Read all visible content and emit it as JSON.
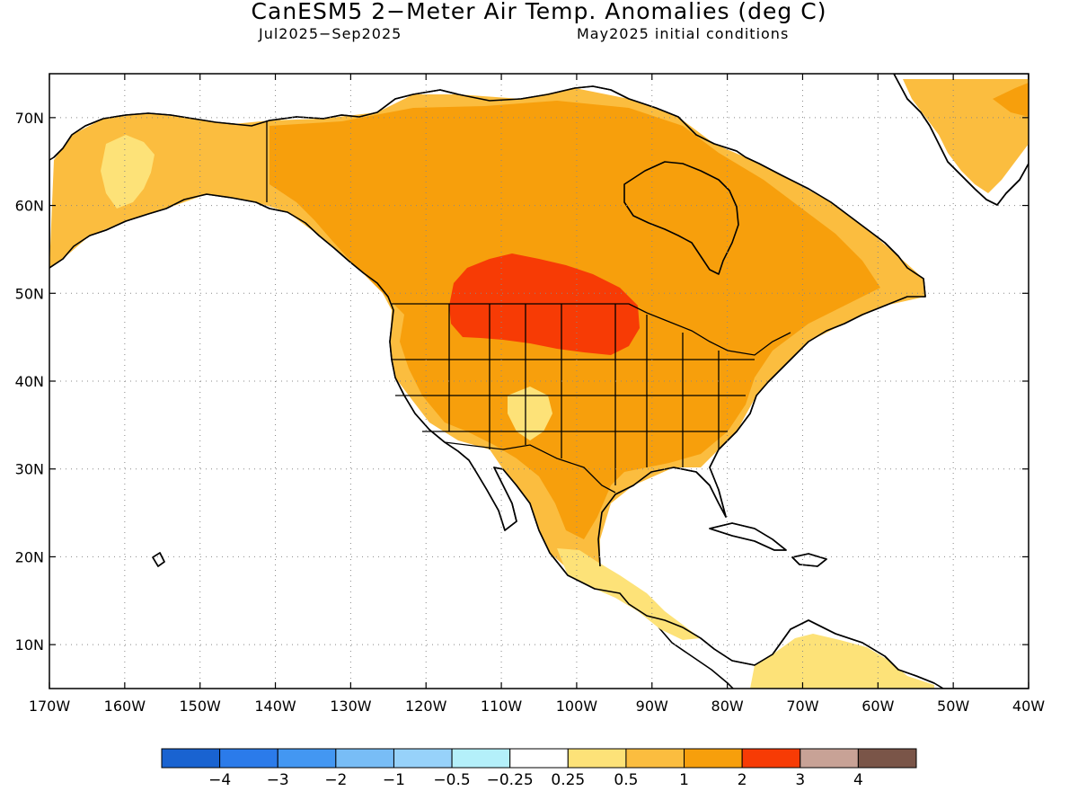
{
  "title": "CanESM5 2−Meter Air Temp. Anomalies (deg C)",
  "subtitle_period": "Jul2025−Sep2025",
  "subtitle_init": "May2025 initial conditions",
  "map": {
    "lon_range": [
      -170,
      -40
    ],
    "lat_range": [
      5,
      75
    ],
    "grid": "dotted",
    "lon_ticks": [
      "170W",
      "160W",
      "150W",
      "140W",
      "130W",
      "120W",
      "110W",
      "100W",
      "90W",
      "80W",
      "70W",
      "60W",
      "50W",
      "40W"
    ],
    "lat_ticks": [
      "10N",
      "20N",
      "30N",
      "40N",
      "50N",
      "60N",
      "70N"
    ],
    "colors": {
      "land_outline": "#000000",
      "anom_0_25_0_5": "#fde278",
      "anom_0_5_1": "#fbbd3f",
      "anom_1_2": "#f79f0c",
      "anom_2_3": "#f73b05",
      "no_anomaly": "#ffffff"
    }
  },
  "colorbar": {
    "colors": [
      "#1963d1",
      "#2b7bea",
      "#4397f2",
      "#78bdf6",
      "#97d2fa",
      "#b4f0fa",
      "#ffffff",
      "#fde278",
      "#fbbd3f",
      "#f79f0c",
      "#f73b05",
      "#c8a296",
      "#7a5548"
    ],
    "labels": [
      "−4",
      "−3",
      "−2",
      "−1",
      "−0.5",
      "−0.25",
      "0.25",
      "0.5",
      "1",
      "2",
      "3",
      "4"
    ]
  }
}
